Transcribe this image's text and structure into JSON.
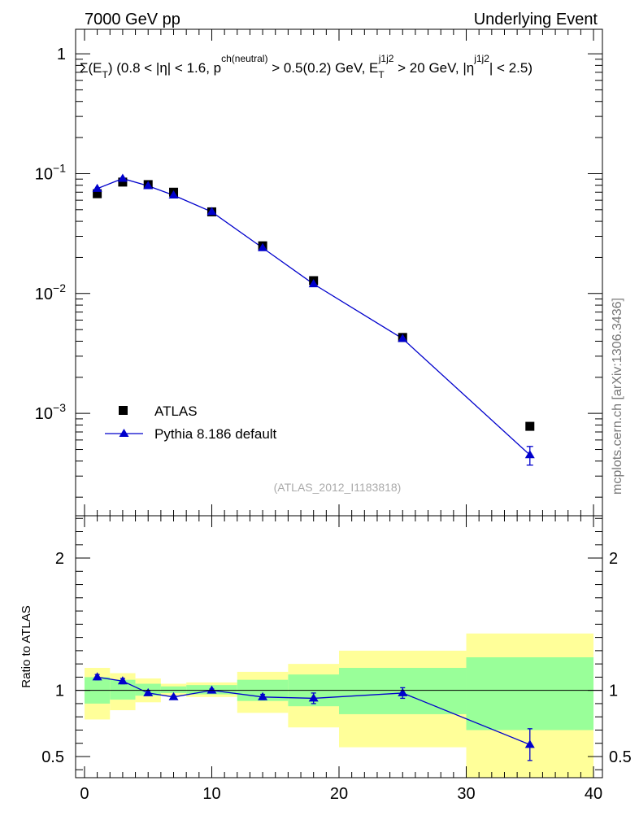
{
  "header": {
    "left": "7000 GeV pp",
    "right": "Underlying Event"
  },
  "legend_title": "Σ(E_T) (0.8 < |η| < 1.6, p^ch(neutral) > 0.5(0.2) GeV, E_T^j1j2 > 20 GeV, |η^j1j2| < 2.5)",
  "watermark": "(ATLAS_2012_I1183818)",
  "side_label": "mcplots.cern.ch [arXiv:1306.3436]",
  "colors": {
    "mc": "#0000cc",
    "data": "#000000",
    "band_inner": "#99ff99",
    "band_outer": "#ffff99"
  },
  "chart_data": [
    {
      "type": "scatter",
      "panel": "main",
      "yscale": "log",
      "xlim": [
        -0.7,
        40.7
      ],
      "ylim": [
        0.00014,
        1.6
      ],
      "ytick_labels": [
        "10^-3",
        "10^-2",
        "10^-1",
        "1"
      ],
      "ytick_values": [
        0.001,
        0.01,
        0.1,
        1
      ],
      "legend": [
        "ATLAS",
        "Pythia 8.186 default"
      ],
      "legend_placement": "lower-left",
      "series": [
        {
          "name": "ATLAS",
          "marker": "square",
          "x": [
            1,
            3,
            5,
            7,
            10,
            14,
            18,
            25,
            35
          ],
          "y": [
            0.068,
            0.085,
            0.081,
            0.07,
            0.048,
            0.025,
            0.0128,
            0.0043,
            0.00078
          ]
        },
        {
          "name": "Pythia 8.186 default",
          "marker": "triangle",
          "x": [
            1,
            3,
            5,
            7,
            10,
            14,
            18,
            25,
            35
          ],
          "y": [
            0.075,
            0.091,
            0.079,
            0.066,
            0.048,
            0.024,
            0.012,
            0.0042,
            0.00045
          ],
          "err_low": [
            0.075,
            0.091,
            0.079,
            0.066,
            0.048,
            0.024,
            0.012,
            0.0042,
            0.00037
          ],
          "err_high": [
            0.075,
            0.091,
            0.079,
            0.066,
            0.048,
            0.024,
            0.012,
            0.0042,
            0.00053
          ]
        }
      ]
    },
    {
      "type": "line",
      "panel": "ratio",
      "ylabel": "Ratio to ATLAS",
      "xlim": [
        -0.7,
        40.7
      ],
      "ylim": [
        0.34,
        2.32
      ],
      "xtick_labels": [
        "0",
        "10",
        "20",
        "30",
        "40"
      ],
      "xtick_values": [
        0,
        10,
        20,
        30,
        40
      ],
      "ytick_labels": [
        "0.5",
        "1",
        "2"
      ],
      "ytick_values": [
        0.5,
        1,
        2
      ],
      "bands": {
        "x_edges": [
          0,
          2,
          4,
          6,
          8,
          12,
          16,
          20,
          30,
          40
        ],
        "inner_low": [
          0.9,
          0.93,
          0.96,
          0.98,
          0.97,
          0.92,
          0.88,
          0.82,
          0.7
        ],
        "inner_high": [
          1.1,
          1.08,
          1.05,
          1.03,
          1.04,
          1.08,
          1.12,
          1.17,
          1.25
        ],
        "outer_low": [
          0.78,
          0.85,
          0.91,
          0.96,
          0.95,
          0.83,
          0.72,
          0.57,
          0.34
        ],
        "outer_high": [
          1.17,
          1.13,
          1.09,
          1.05,
          1.06,
          1.14,
          1.2,
          1.3,
          1.43
        ]
      },
      "series": [
        {
          "name": "Pythia 8.186 default",
          "x": [
            1,
            3,
            5,
            7,
            10,
            14,
            18,
            25,
            35
          ],
          "y": [
            1.1,
            1.07,
            0.98,
            0.95,
            1.0,
            0.95,
            0.94,
            0.98,
            0.59
          ],
          "err_low": [
            1.08,
            1.05,
            0.97,
            0.94,
            0.99,
            0.93,
            0.9,
            0.94,
            0.47
          ],
          "err_high": [
            1.12,
            1.09,
            1.0,
            0.96,
            1.01,
            0.97,
            0.98,
            1.02,
            0.71
          ]
        }
      ]
    }
  ]
}
